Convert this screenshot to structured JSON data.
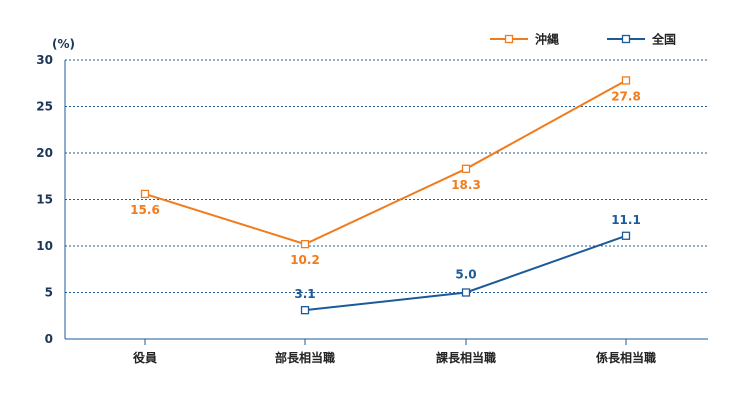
{
  "chart_data": {
    "type": "line",
    "unit_label": "(%)",
    "categories": [
      "役員",
      "部長相当職",
      "課長相当職",
      "係長相当職"
    ],
    "y_ticks": [
      "0",
      "5",
      "10",
      "15",
      "20",
      "25",
      "30"
    ],
    "ylim": [
      0,
      30
    ],
    "grid": true,
    "legend_position": "top-right",
    "series": [
      {
        "name": "沖縄",
        "color": "#f07c1d",
        "values": [
          15.6,
          10.2,
          18.3,
          27.8
        ],
        "labels": [
          "15.6",
          "10.2",
          "18.3",
          "27.8"
        ]
      },
      {
        "name": "全国",
        "color": "#1c5a99",
        "values": [
          null,
          3.1,
          5.0,
          11.1
        ],
        "labels": [
          "",
          "3.1",
          "5.0",
          "11.1"
        ]
      }
    ]
  }
}
